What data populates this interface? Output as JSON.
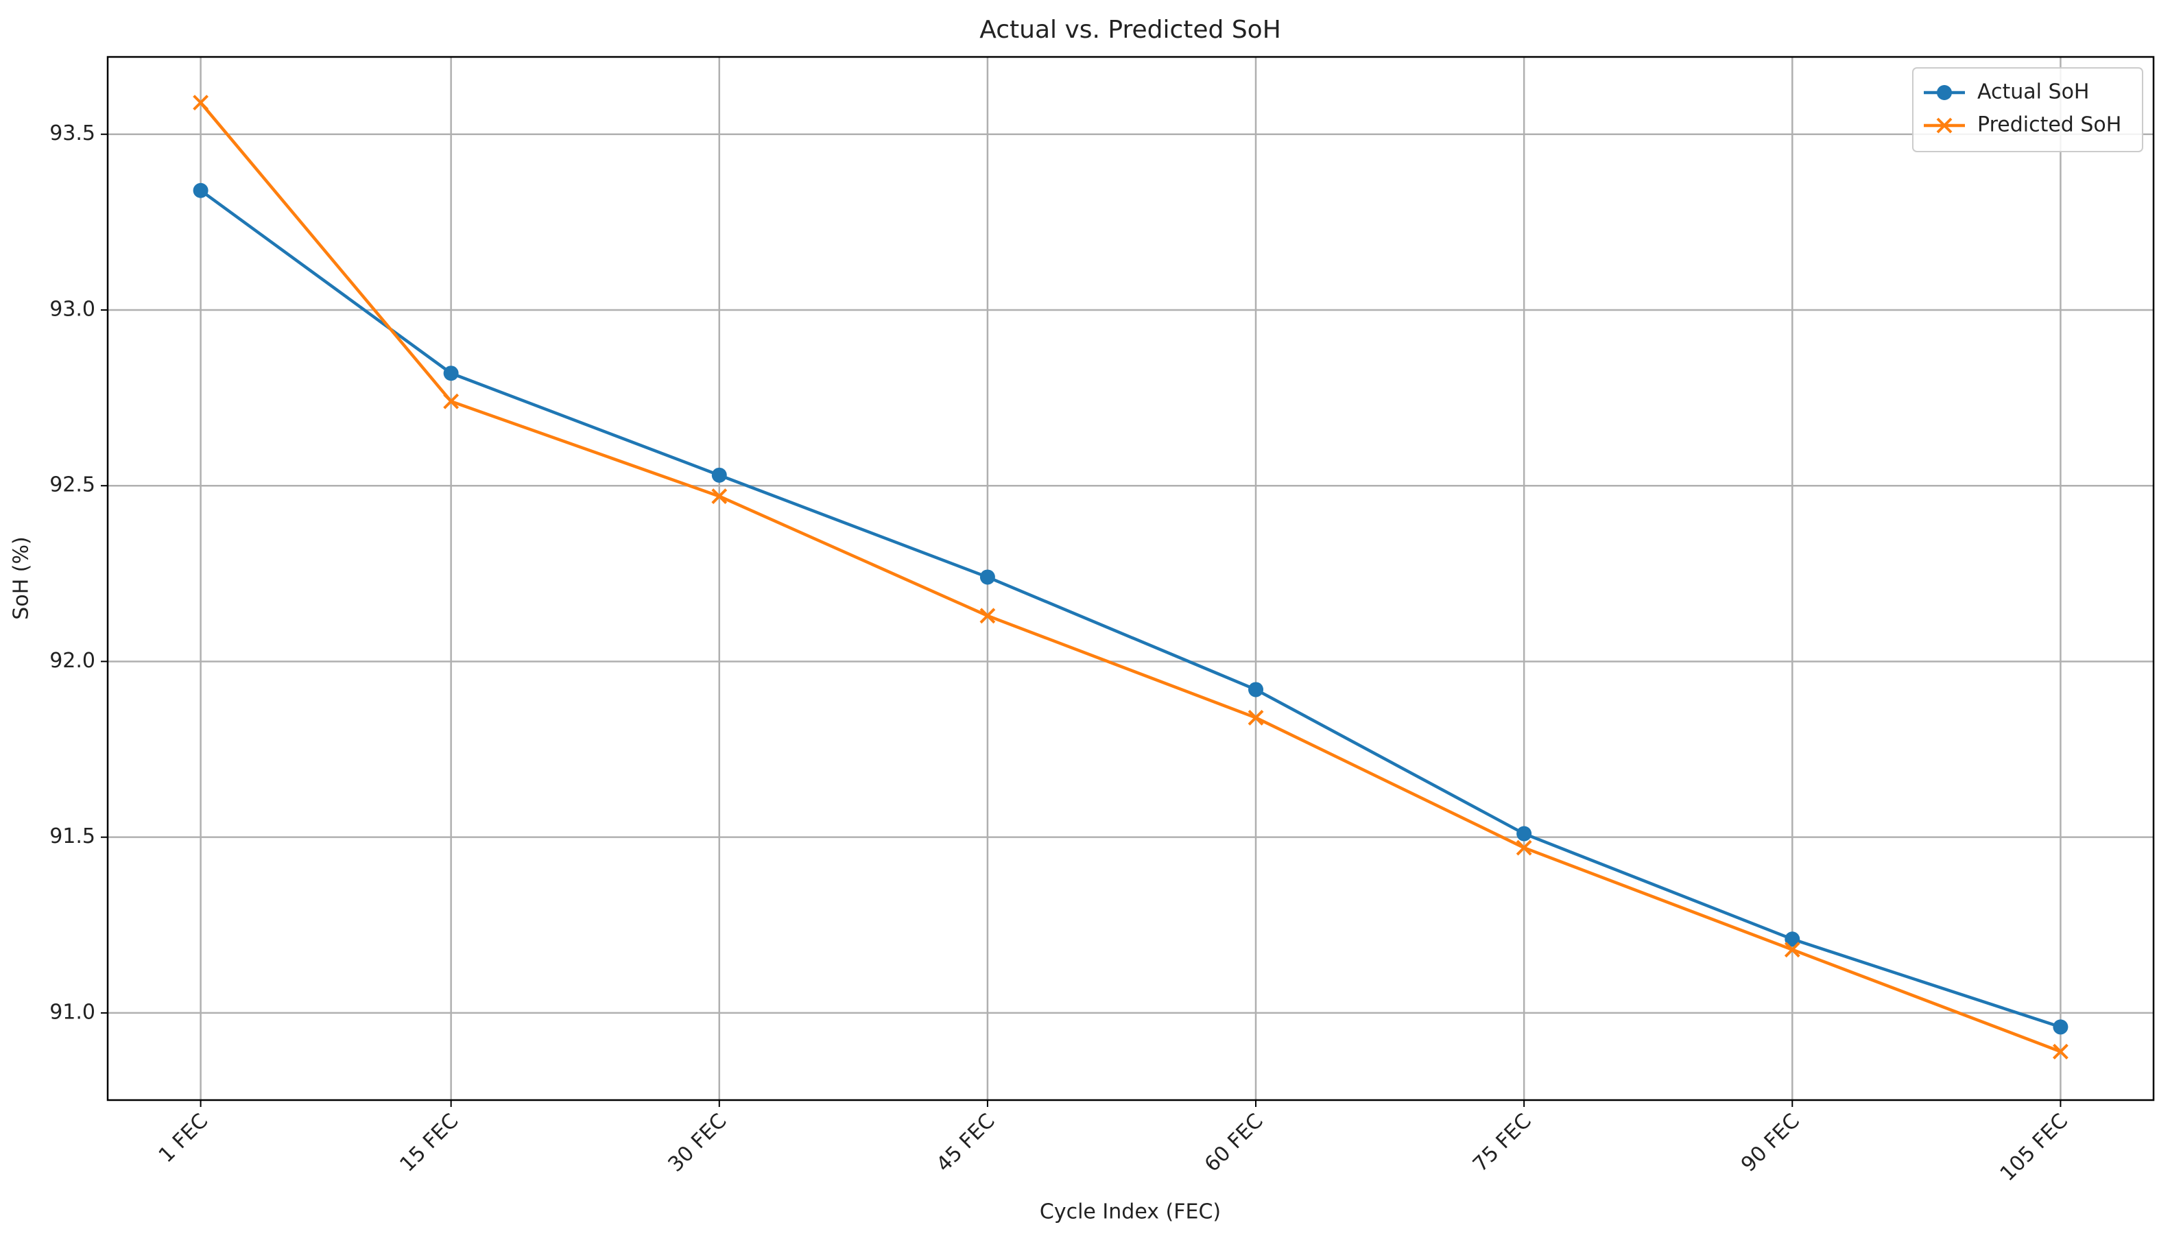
{
  "chart_data": {
    "type": "line",
    "title": "Actual vs. Predicted SoH",
    "x_label": "Cycle Index (FEC)",
    "y_label": "SoH (%)",
    "x": [
      1,
      15,
      30,
      45,
      60,
      75,
      90,
      105
    ],
    "xlim": [
      -4.2,
      110.2
    ],
    "xticks": [
      {
        "value": 1,
        "label": "1 FEC"
      },
      {
        "value": 15,
        "label": "15 FEC"
      },
      {
        "value": 30,
        "label": "30 FEC"
      },
      {
        "value": 45,
        "label": "45 FEC"
      },
      {
        "value": 60,
        "label": "60 FEC"
      },
      {
        "value": 75,
        "label": "75 FEC"
      },
      {
        "value": 90,
        "label": "90 FEC"
      },
      {
        "value": 105,
        "label": "105 FEC"
      }
    ],
    "ylim": [
      90.752,
      93.72
    ],
    "yticks": [
      {
        "value": 91,
        "label": "91.0"
      },
      91.5,
      {
        "value": 92,
        "label": "92.0"
      },
      92.5,
      {
        "value": 93,
        "label": "93.0"
      },
      93.5
    ],
    "grid": true,
    "legend": "upper right",
    "series": [
      {
        "name": "Actual SoH",
        "color": "#1f77b4",
        "marker": "circle",
        "values": [
          93.34,
          92.82,
          92.53,
          92.24,
          91.92,
          91.51,
          91.21,
          90.96
        ]
      },
      {
        "name": "Predicted SoH",
        "color": "#ff7f0e",
        "marker": "x",
        "values": [
          93.59,
          92.74,
          92.47,
          92.13,
          91.84,
          91.47,
          91.18,
          90.89
        ]
      }
    ]
  }
}
